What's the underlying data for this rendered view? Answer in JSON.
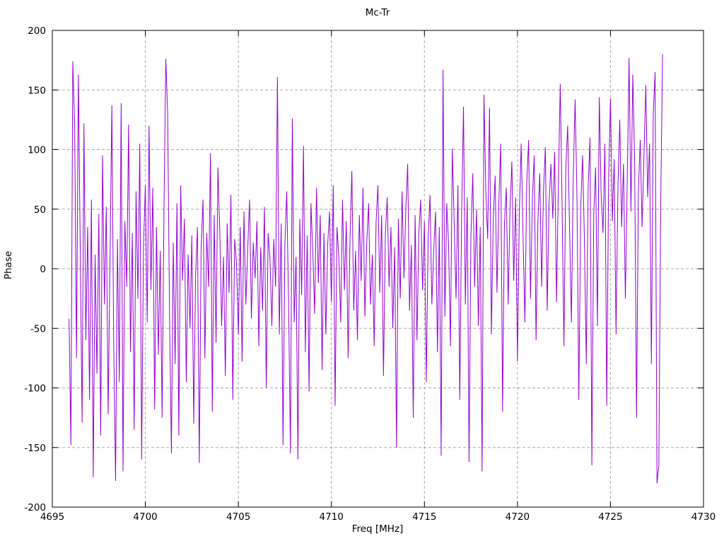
{
  "chart_data": {
    "type": "line",
    "title": "Mc-Tr",
    "xlabel": "Freq [MHz]",
    "ylabel": "Phase",
    "xlim": [
      4695,
      4730
    ],
    "ylim": [
      -200,
      200
    ],
    "xticks": [
      4695,
      4700,
      4705,
      4710,
      4715,
      4720,
      4725,
      4730
    ],
    "yticks": [
      -200,
      -150,
      -100,
      -50,
      0,
      50,
      100,
      150,
      200
    ],
    "grid": true,
    "legend_position": "none",
    "line_color": "#9400d3",
    "grid_color": "#a8a8a8",
    "border_color": "#000000",
    "background_color": "#ffffff",
    "series_name": "Phase",
    "x_start": 4695.9,
    "x_step": 0.1,
    "y": [
      -42,
      -148,
      174,
      120,
      -75,
      163,
      18,
      -129,
      122,
      -60,
      35,
      -110,
      58,
      -175,
      12,
      -88,
      46,
      -140,
      95,
      -30,
      52,
      -122,
      8,
      137,
      -65,
      -178,
      25,
      -95,
      139,
      -170,
      40,
      -15,
      121,
      -70,
      30,
      -135,
      65,
      -25,
      105,
      -160,
      18,
      70,
      -45,
      120,
      -18,
      68,
      -118,
      35,
      -72,
      15,
      -125,
      48,
      176,
      130,
      -38,
      -155,
      22,
      -80,
      55,
      -140,
      70,
      -10,
      42,
      -95,
      12,
      -50,
      28,
      -130,
      -5,
      35,
      -163,
      20,
      58,
      -75,
      30,
      -15,
      97,
      -120,
      45,
      -62,
      85,
      32,
      -48,
      10,
      -90,
      38,
      -20,
      62,
      -110,
      25,
      5,
      -55,
      35,
      -78,
      48,
      -30,
      15,
      58,
      -42,
      22,
      -8,
      40,
      -65,
      18,
      -35,
      52,
      -100,
      30,
      8,
      -48,
      25,
      -15,
      161,
      -55,
      38,
      -148,
      20,
      65,
      -30,
      -155,
      126,
      -45,
      10,
      -160,
      42,
      -22,
      103,
      -70,
      28,
      -103,
      55,
      15,
      -38,
      68,
      -12,
      45,
      -85,
      30,
      -55,
      20,
      48,
      -28,
      70,
      -115,
      35,
      10,
      -45,
      58,
      -18,
      40,
      -75,
      25,
      82,
      -35,
      15,
      -60,
      45,
      -10,
      68,
      -40,
      22,
      55,
      -30,
      12,
      -65,
      38,
      70,
      -20,
      45,
      -90,
      28,
      60,
      -15,
      35,
      -50,
      18,
      -150,
      42,
      -25,
      65,
      -8,
      50,
      88,
      -35,
      20,
      -125,
      45,
      -60,
      30,
      58,
      -18,
      40,
      -95,
      25,
      62,
      -30,
      15,
      48,
      -70,
      35,
      -157,
      167,
      -40,
      55,
      20,
      -65,
      101,
      38,
      -25,
      70,
      -110,
      45,
      136,
      -30,
      60,
      -162,
      28,
      80,
      -15,
      50,
      -48,
      35,
      -170,
      146,
      65,
      25,
      135,
      -55,
      42,
      78,
      -20,
      55,
      105,
      -120,
      38,
      68,
      -30,
      50,
      90,
      -10,
      60,
      -78,
      45,
      105,
      28,
      -45,
      72,
      108,
      -25,
      58,
      95,
      -60,
      40,
      80,
      -15,
      65,
      102,
      -35,
      55,
      88,
      42,
      98,
      -28,
      70,
      155,
      52,
      -65,
      85,
      120,
      35,
      -45,
      78,
      142,
      60,
      -110,
      50,
      95,
      25,
      -80,
      68,
      110,
      -165,
      45,
      85,
      -48,
      144,
      62,
      30,
      105,
      -115,
      75,
      143,
      40,
      92,
      -55,
      68,
      125,
      35,
      88,
      -25,
      72,
      177,
      48,
      163,
      90,
      -125,
      65,
      108,
      35,
      95,
      154,
      60,
      105,
      -80,
      130,
      165,
      -180,
      -165,
      55,
      180
    ]
  }
}
